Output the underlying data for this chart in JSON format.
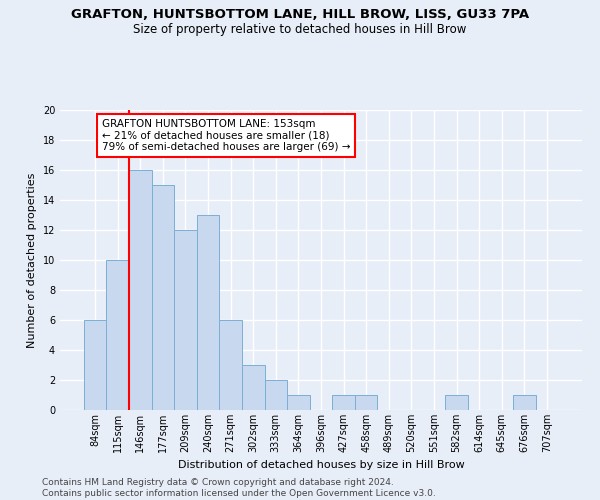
{
  "title": "GRAFTON, HUNTSBOTTOM LANE, HILL BROW, LISS, GU33 7PA",
  "subtitle": "Size of property relative to detached houses in Hill Brow",
  "xlabel": "Distribution of detached houses by size in Hill Brow",
  "ylabel": "Number of detached properties",
  "footer_line1": "Contains HM Land Registry data © Crown copyright and database right 2024.",
  "footer_line2": "Contains public sector information licensed under the Open Government Licence v3.0.",
  "bin_labels": [
    "84sqm",
    "115sqm",
    "146sqm",
    "177sqm",
    "209sqm",
    "240sqm",
    "271sqm",
    "302sqm",
    "333sqm",
    "364sqm",
    "396sqm",
    "427sqm",
    "458sqm",
    "489sqm",
    "520sqm",
    "551sqm",
    "582sqm",
    "614sqm",
    "645sqm",
    "676sqm",
    "707sqm"
  ],
  "bar_values": [
    6,
    10,
    16,
    15,
    12,
    13,
    6,
    3,
    2,
    1,
    0,
    1,
    1,
    0,
    0,
    0,
    1,
    0,
    0,
    1,
    0
  ],
  "bar_color": "#c8d8ee",
  "bar_edgecolor": "#7aafd4",
  "vline_position": 1.5,
  "vline_color": "red",
  "annotation_text": "GRAFTON HUNTSBOTTOM LANE: 153sqm\n← 21% of detached houses are smaller (18)\n79% of semi-detached houses are larger (69) →",
  "annotation_box_facecolor": "white",
  "annotation_box_edgecolor": "red",
  "ylim": [
    0,
    20
  ],
  "yticks": [
    0,
    2,
    4,
    6,
    8,
    10,
    12,
    14,
    16,
    18,
    20
  ],
  "background_color": "#e8eef8",
  "plot_background": "#e8eef8",
  "grid_color": "white",
  "title_fontsize": 9.5,
  "subtitle_fontsize": 8.5,
  "ylabel_fontsize": 8,
  "xlabel_fontsize": 8,
  "tick_fontsize": 7,
  "annotation_fontsize": 7.5,
  "footer_fontsize": 6.5
}
